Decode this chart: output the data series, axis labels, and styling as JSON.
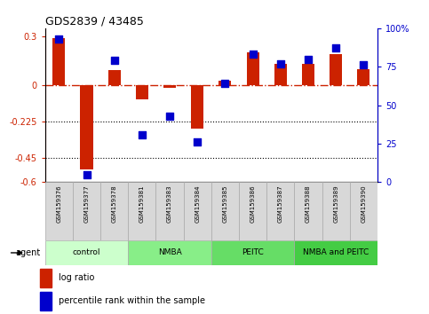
{
  "title": "GDS2839 / 43485",
  "samples": [
    "GSM159376",
    "GSM159377",
    "GSM159378",
    "GSM159381",
    "GSM159383",
    "GSM159384",
    "GSM159385",
    "GSM159386",
    "GSM159387",
    "GSM159388",
    "GSM159389",
    "GSM159390"
  ],
  "log_ratio": [
    0.29,
    -0.52,
    0.09,
    -0.09,
    -0.015,
    -0.27,
    0.025,
    0.2,
    0.13,
    0.13,
    0.19,
    0.1
  ],
  "percentile_rank": [
    93,
    5,
    79,
    31,
    43,
    26,
    64,
    83,
    77,
    80,
    87,
    76
  ],
  "groups": [
    {
      "label": "control",
      "start": 0,
      "end": 3,
      "color": "#ccffcc"
    },
    {
      "label": "NMBA",
      "start": 3,
      "end": 6,
      "color": "#88ee88"
    },
    {
      "label": "PEITC",
      "start": 6,
      "end": 9,
      "color": "#66dd66"
    },
    {
      "label": "NMBA and PEITC",
      "start": 9,
      "end": 12,
      "color": "#44cc44"
    }
  ],
  "ylim_left": [
    -0.6,
    0.35
  ],
  "ylim_right": [
    0,
    100
  ],
  "yticks_left": [
    -0.6,
    -0.45,
    -0.225,
    0.0,
    0.3
  ],
  "ytick_labels_left": [
    "-0.6",
    "-0.45",
    "-0.225",
    "0",
    "0.3"
  ],
  "yticks_right": [
    0,
    25,
    50,
    75,
    100
  ],
  "ytick_labels_right": [
    "0",
    "25",
    "50",
    "75",
    "100%"
  ],
  "hlines": [
    -0.225,
    -0.45
  ],
  "bar_color": "#cc2200",
  "dot_color": "#0000cc",
  "bar_width": 0.45,
  "dot_size": 40,
  "background_color": "#ffffff",
  "agent_label": "agent",
  "legend_log_ratio": "log ratio",
  "legend_percentile": "percentile rank within the sample",
  "group_colors": [
    "#ccffcc",
    "#88ee88",
    "#66dd66",
    "#44cc44"
  ],
  "sample_cell_color": "#d8d8d8",
  "sample_border_color": "#aaaaaa"
}
